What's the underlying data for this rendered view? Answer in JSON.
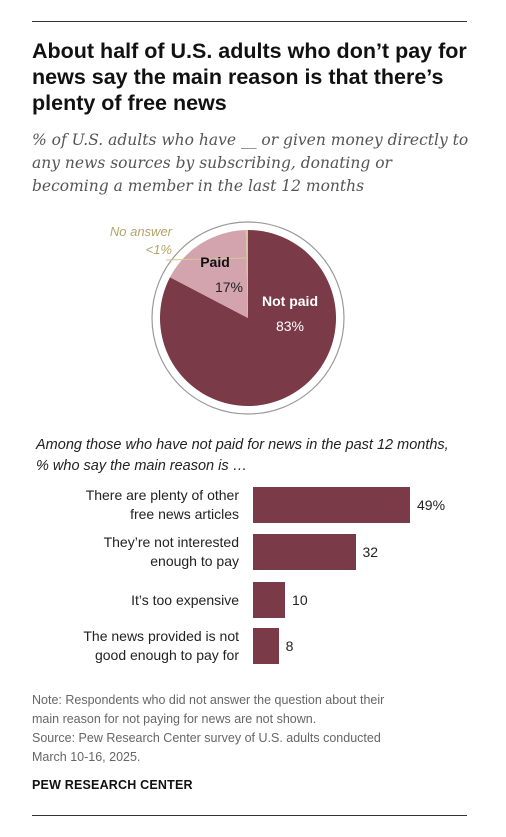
{
  "title": "About half of U.S. adults who don’t pay for news say the main reason is that there’s plenty of free news",
  "subtitle": "% of U.S. adults who have __ or given money directly to any news sources by subscribing, donating or becoming a member in the last 12 months",
  "colors": {
    "not_paid": "#7a3a48",
    "paid": "#d3a4ad",
    "no_answer": "#d4c795",
    "bar": "#7a3a48"
  },
  "chart_data": [
    {
      "type": "pie",
      "slices": [
        {
          "name": "Not paid",
          "value": 83,
          "label": "83%"
        },
        {
          "name": "Paid",
          "value": 17,
          "label": "17%"
        },
        {
          "name": "No answer",
          "value": 0.4,
          "label": "<1%"
        }
      ]
    },
    {
      "type": "bar",
      "orientation": "horizontal",
      "title": "Among those who have not paid for news in the past 12 months, % who say the main reason is …",
      "categories": [
        "There are plenty of other free news articles",
        "They’re not interested enough to pay",
        "It’s too expensive",
        "The news provided is not good enough to pay for"
      ],
      "category_lines": [
        "There are plenty of other\nfree news articles",
        "They’re not interested\nenough to pay",
        "It’s too expensive",
        "The news provided is not\ngood enough to pay for"
      ],
      "values": [
        49,
        32,
        10,
        8
      ],
      "value_labels": [
        "49%",
        "32",
        "10",
        "8"
      ]
    }
  ],
  "note": "Note: Respondents who did not answer the question about their\nmain reason for not paying for news are not shown.",
  "source": "Source: Pew Research Center survey of U.S. adults conducted\nMarch 10-16, 2025.",
  "brand": "PEW RESEARCH CENTER"
}
